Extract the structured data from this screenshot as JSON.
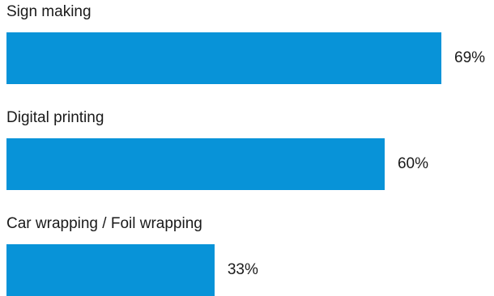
{
  "chart_data": {
    "type": "bar",
    "orientation": "horizontal",
    "categories": [
      "Sign making",
      "Digital printing",
      "Car wrapping / Foil wrapping"
    ],
    "values": [
      69,
      60,
      33
    ],
    "value_labels": [
      "69%",
      "60%",
      "33%"
    ],
    "unit": "%",
    "bar_color": "#0893d8",
    "grid": false,
    "legend": "none"
  }
}
